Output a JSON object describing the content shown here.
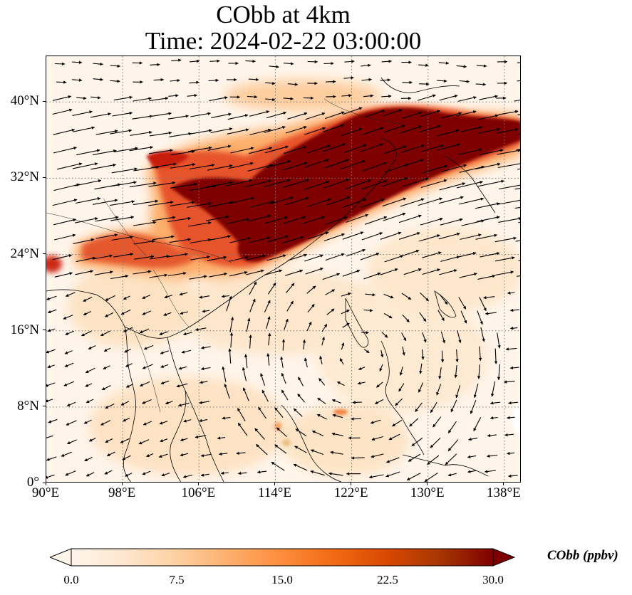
{
  "title": {
    "line1": "CObb at 4km",
    "line2": "Time: 2024-02-22 03:00:00"
  },
  "map": {
    "variable": "CObb",
    "level": "4km",
    "extent": {
      "lon_min": 90,
      "lon_max": 139.8,
      "lat_min": 0,
      "lat_max": 44.8
    },
    "grid": "dotted",
    "x_ticks": [
      "90°E",
      "98°E",
      "106°E",
      "114°E",
      "122°E",
      "130°E",
      "138°E"
    ],
    "x_tick_values": [
      90,
      98,
      106,
      114,
      122,
      130,
      138
    ],
    "y_ticks": [
      "0°",
      "8°N",
      "16°N",
      "24°N",
      "32°N",
      "40°N"
    ],
    "y_tick_values": [
      0,
      8,
      16,
      24,
      32,
      40
    ],
    "plume_description_colors": {
      "low": "#fff5eb",
      "mid": "#fd8d3c",
      "high": "#7f0000"
    },
    "wind_vectors": "quiver"
  },
  "colorbar": {
    "label": "CObb (ppbv)",
    "min": 0.0,
    "max": 30.0,
    "ticks": [
      "0.0",
      "7.5",
      "15.0",
      "22.5",
      "30.0"
    ],
    "tick_values": [
      0,
      7.5,
      15,
      22.5,
      30
    ],
    "extend": "both",
    "colormap": "OrRd-like",
    "stops": [
      "#fff5eb",
      "#fee6ce",
      "#fdd0a2",
      "#fdae6b",
      "#fd8d3c",
      "#f16913",
      "#d94801",
      "#a63603",
      "#7f0000"
    ]
  }
}
